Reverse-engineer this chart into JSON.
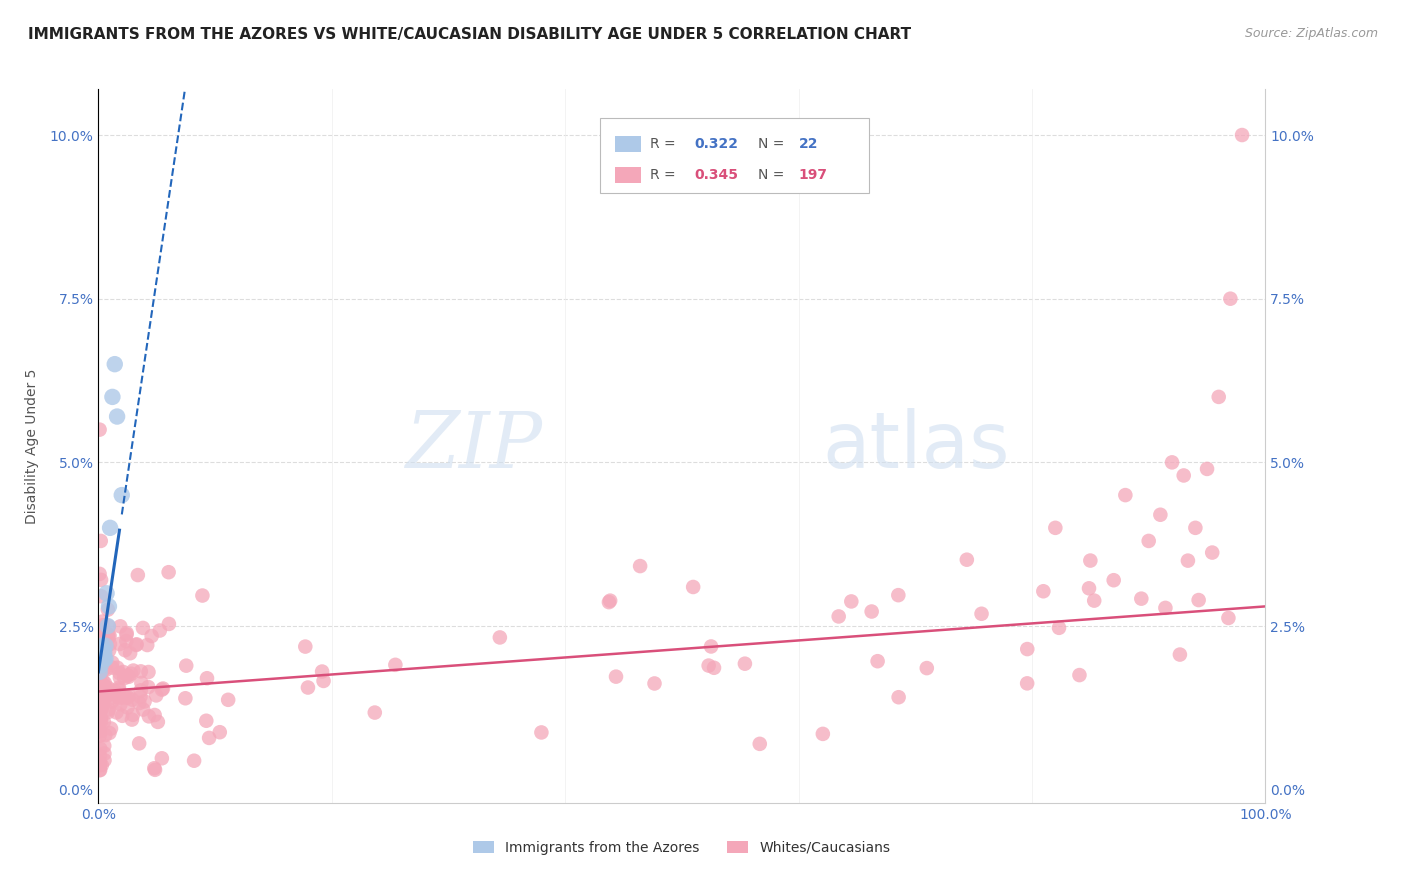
{
  "title": "IMMIGRANTS FROM THE AZORES VS WHITE/CAUCASIAN DISABILITY AGE UNDER 5 CORRELATION CHART",
  "source": "Source: ZipAtlas.com",
  "ylabel": "Disability Age Under 5",
  "xlim": [
    0.0,
    1.0
  ],
  "ylim": [
    -0.002,
    0.107
  ],
  "blue_R": 0.322,
  "blue_N": 22,
  "pink_R": 0.345,
  "pink_N": 197,
  "blue_color": "#aec9e8",
  "pink_color": "#f4a7b9",
  "regression_blue_color": "#2266bb",
  "regression_pink_color": "#d94f7a",
  "legend_label_blue": "Immigrants from the Azores",
  "legend_label_pink": "Whites/Caucasians",
  "watermark_zip": "ZIP",
  "watermark_atlas": "atlas",
  "background_color": "#ffffff",
  "grid_color": "#dddddd",
  "title_color": "#222222",
  "tick_label_color": "#4472c4",
  "ytick_positions": [
    0.0,
    0.025,
    0.05,
    0.075,
    0.1
  ],
  "ytick_labels": [
    "0.0%",
    "2.5%",
    "5.0%",
    "7.5%",
    "10.0%"
  ],
  "xtick_positions": [
    0.0,
    1.0
  ],
  "xtick_labels": [
    "0.0%",
    "100.0%"
  ],
  "blue_intercept": 0.018,
  "blue_slope": 1.2,
  "pink_intercept": 0.015,
  "pink_slope": 0.013
}
